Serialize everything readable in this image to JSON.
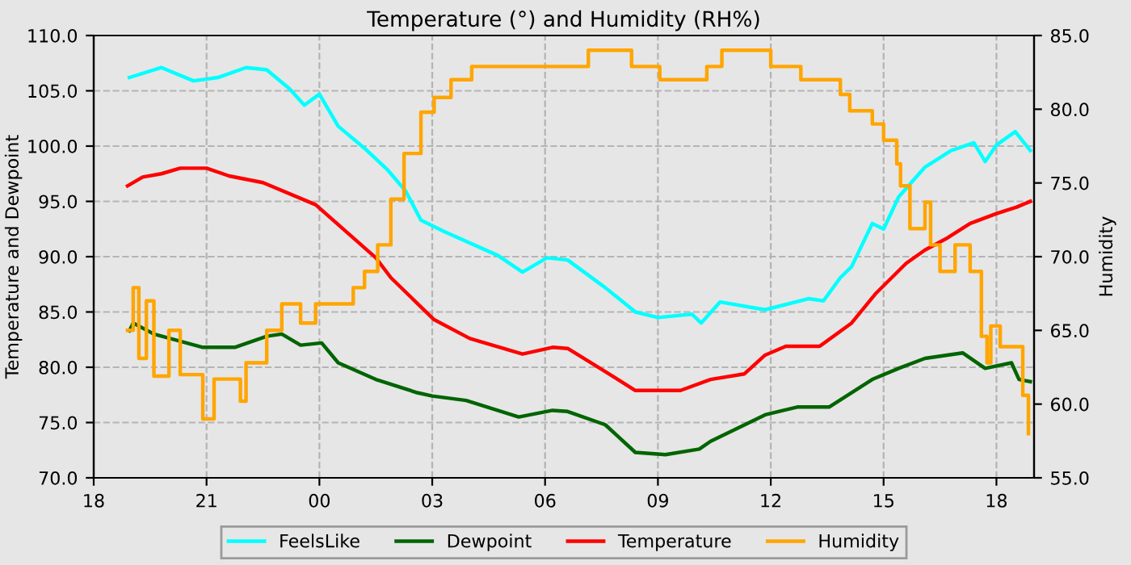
{
  "chart_data": {
    "type": "line",
    "title": "Temperature (°) and Humidity (RH%)",
    "ylabel": "Temperature and Dewpoint",
    "y2label": "Humidity",
    "xlim": [
      18,
      43
    ],
    "xticks": [
      {
        "value": 18,
        "label": "18"
      },
      {
        "value": 21,
        "label": "21"
      },
      {
        "value": 24,
        "label": "00"
      },
      {
        "value": 27,
        "label": "03"
      },
      {
        "value": 30,
        "label": "06"
      },
      {
        "value": 33,
        "label": "09"
      },
      {
        "value": 36,
        "label": "12"
      },
      {
        "value": 39,
        "label": "15"
      },
      {
        "value": 42,
        "label": "18"
      }
    ],
    "ylim": [
      70,
      110
    ],
    "yticks": [
      {
        "value": 70,
        "label": "70.0"
      },
      {
        "value": 75,
        "label": "75.0"
      },
      {
        "value": 80,
        "label": "80.0"
      },
      {
        "value": 85,
        "label": "85.0"
      },
      {
        "value": 90,
        "label": "90.0"
      },
      {
        "value": 95,
        "label": "95.0"
      },
      {
        "value": 100,
        "label": "100.0"
      },
      {
        "value": 105,
        "label": "105.0"
      },
      {
        "value": 110,
        "label": "110.0"
      }
    ],
    "y2lim": [
      55,
      85
    ],
    "y2ticks": [
      {
        "value": 55,
        "label": "55.0"
      },
      {
        "value": 60,
        "label": "60.0"
      },
      {
        "value": 65,
        "label": "65.0"
      },
      {
        "value": 70,
        "label": "70.0"
      },
      {
        "value": 75,
        "label": "75.0"
      },
      {
        "value": 80,
        "label": "80.0"
      },
      {
        "value": 85,
        "label": "85.0"
      }
    ],
    "grid": true,
    "legend": "bottom",
    "series": [
      {
        "name": "FeelsLike",
        "color": "#00ffff",
        "x": [
          18.95,
          19.8,
          20.65,
          21.3,
          22.05,
          22.6,
          23.2,
          23.6,
          24.0,
          24.5,
          25.2,
          25.8,
          26.3,
          26.7,
          27.3,
          28.75,
          29.4,
          30.05,
          30.6,
          31.6,
          32.4,
          33.0,
          33.9,
          34.15,
          34.65,
          35.85,
          37.0,
          37.4,
          37.85,
          38.15,
          38.7,
          39.0,
          39.4,
          40.1,
          40.8,
          41.4,
          41.7,
          42.0,
          42.5,
          42.9
        ],
        "values": [
          106.2,
          107.1,
          105.9,
          106.2,
          107.1,
          106.9,
          105.2,
          103.7,
          104.7,
          101.8,
          99.8,
          97.9,
          95.9,
          93.3,
          92.3,
          90.1,
          88.6,
          89.9,
          89.7,
          87.2,
          85.0,
          84.5,
          84.8,
          84.0,
          85.9,
          85.2,
          86.2,
          86.0,
          88.1,
          89.1,
          93.0,
          92.5,
          95.4,
          98.1,
          99.6,
          100.3,
          98.6,
          100.1,
          101.3,
          99.6
        ]
      },
      {
        "name": "Dewpoint",
        "color": "#006400",
        "x": [
          18.95,
          19.05,
          19.6,
          20.9,
          21.75,
          22.6,
          23.0,
          23.5,
          24.06,
          24.5,
          25.5,
          26.6,
          27.0,
          27.9,
          29.3,
          30.2,
          30.6,
          31.6,
          32.4,
          33.2,
          34.1,
          34.4,
          35.85,
          36.7,
          37.55,
          38.7,
          39.4,
          40.1,
          41.1,
          41.7,
          42.4,
          42.6,
          42.9
        ],
        "values": [
          83.3,
          84.0,
          83.0,
          81.8,
          81.8,
          82.8,
          83.0,
          82.0,
          82.2,
          80.4,
          78.9,
          77.7,
          77.4,
          77.0,
          75.5,
          76.1,
          76.0,
          74.8,
          72.3,
          72.1,
          72.6,
          73.3,
          75.7,
          76.4,
          76.4,
          78.9,
          79.9,
          80.8,
          81.3,
          79.9,
          80.4,
          78.9,
          78.7
        ]
      },
      {
        "name": "Temperature",
        "color": "#ff0000",
        "x": [
          18.9,
          19.3,
          19.8,
          20.3,
          21.0,
          21.6,
          22.5,
          23.9,
          25.5,
          25.9,
          27.05,
          28.0,
          29.4,
          30.2,
          30.6,
          31.6,
          32.4,
          33.6,
          34.4,
          35.3,
          35.85,
          36.4,
          37.3,
          38.15,
          38.8,
          39.6,
          40.1,
          40.7,
          41.3,
          42.0,
          42.55,
          42.9
        ],
        "values": [
          96.4,
          97.2,
          97.5,
          98.0,
          98.0,
          97.3,
          96.7,
          94.7,
          89.9,
          88.1,
          84.3,
          82.6,
          81.2,
          81.8,
          81.7,
          79.6,
          77.9,
          77.9,
          78.9,
          79.4,
          81.1,
          81.9,
          81.9,
          84.0,
          86.7,
          89.4,
          90.6,
          91.7,
          93.0,
          93.9,
          94.5,
          95.0
        ]
      },
      {
        "name": "Humidity",
        "color": "#ffa500",
        "type": "step",
        "axis": "y2",
        "x": [
          18.9,
          19.05,
          19.2,
          19.4,
          19.6,
          20.0,
          20.3,
          20.9,
          21.2,
          21.9,
          22.05,
          22.6,
          23.0,
          23.5,
          23.9,
          24.9,
          25.2,
          25.55,
          25.9,
          26.25,
          26.7,
          27.05,
          27.5,
          28.05,
          31.15,
          32.3,
          33.05,
          34.3,
          34.7,
          36.0,
          36.8,
          37.85,
          38.1,
          38.7,
          39.0,
          39.35,
          39.45,
          39.7,
          40.1,
          40.25,
          40.5,
          40.9,
          41.3,
          41.6,
          41.75,
          41.85,
          42.1,
          42.45,
          42.7,
          42.85
        ],
        "values": [
          65.0,
          67.9,
          63.1,
          67.0,
          61.9,
          65.0,
          62.0,
          59.0,
          61.7,
          60.2,
          62.8,
          65.0,
          66.8,
          65.5,
          66.8,
          67.9,
          69.0,
          70.8,
          73.9,
          77.0,
          79.8,
          80.8,
          82.0,
          82.9,
          84.0,
          82.9,
          82.0,
          82.9,
          84.0,
          82.9,
          82.0,
          81.0,
          79.9,
          79.0,
          77.9,
          76.3,
          74.8,
          71.9,
          73.7,
          70.8,
          69.0,
          70.8,
          69.0,
          64.6,
          62.8,
          65.3,
          63.9,
          63.9,
          60.6,
          58.0
        ]
      }
    ]
  }
}
